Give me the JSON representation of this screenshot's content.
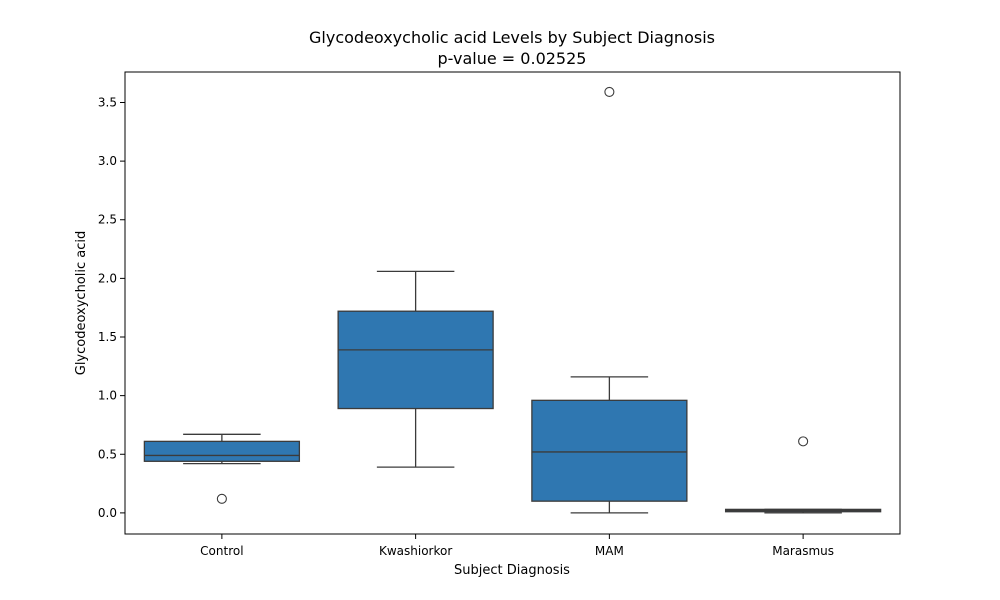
{
  "chart_data": {
    "type": "box",
    "title": "Glycodeoxycholic acid Levels by Subject Diagnosis",
    "subtitle": "p-value = 0.02525",
    "xlabel": "Subject Diagnosis",
    "ylabel": "Glycodeoxycholic acid",
    "ylim": [
      -0.18,
      3.76
    ],
    "yticks": [
      0.0,
      0.5,
      1.0,
      1.5,
      2.0,
      2.5,
      3.0,
      3.5
    ],
    "ytick_labels": [
      "0.0",
      "0.5",
      "1.0",
      "1.5",
      "2.0",
      "2.5",
      "3.0",
      "3.5"
    ],
    "grid": false,
    "box_color": "#2f77b1",
    "line_color": "#3b3b3b",
    "categories": [
      "Control",
      "Kwashiorkor",
      "MAM",
      "Marasmus"
    ],
    "boxes": [
      {
        "category": "Control",
        "whisker_low": 0.42,
        "q1": 0.44,
        "median": 0.49,
        "q3": 0.61,
        "whisker_high": 0.67,
        "outliers": [
          0.12
        ]
      },
      {
        "category": "Kwashiorkor",
        "whisker_low": 0.39,
        "q1": 0.89,
        "median": 1.39,
        "q3": 1.72,
        "whisker_high": 2.06,
        "outliers": []
      },
      {
        "category": "MAM",
        "whisker_low": 0.0,
        "q1": 0.1,
        "median": 0.52,
        "q3": 0.96,
        "whisker_high": 1.16,
        "outliers": [
          3.59
        ]
      },
      {
        "category": "Marasmus",
        "whisker_low": 0.0,
        "q1": 0.01,
        "median": 0.02,
        "q3": 0.03,
        "whisker_high": 0.03,
        "outliers": [
          0.61
        ]
      }
    ]
  }
}
